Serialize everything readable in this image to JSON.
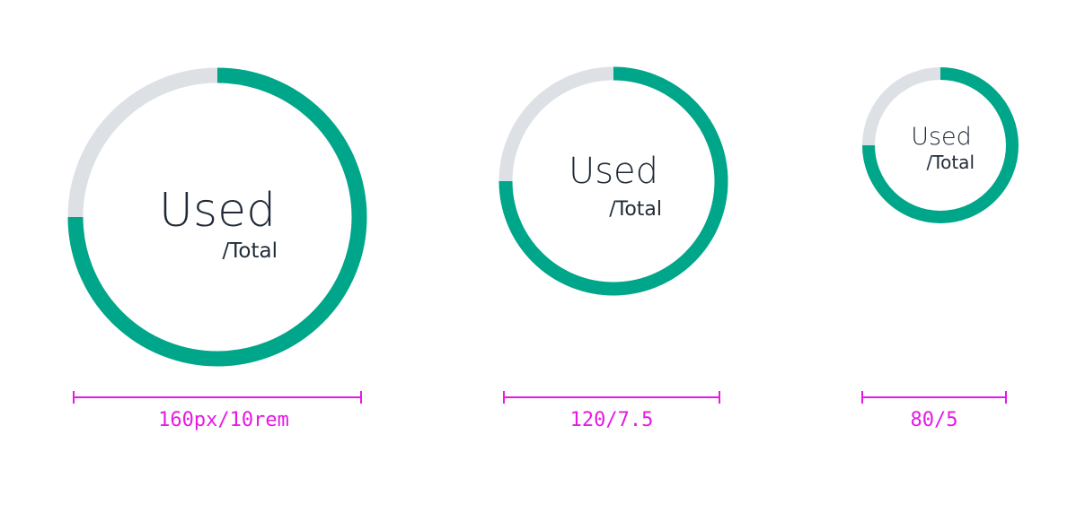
{
  "colors": {
    "track": "#dde1e6",
    "fill": "#00a68a",
    "text": "#1f2a37",
    "dimension": "#e619e6"
  },
  "gauges": [
    {
      "name": "large",
      "used_label": "Used",
      "total_label": "/Total",
      "fill_fraction": 0.75,
      "size_label": "160px/10rem"
    },
    {
      "name": "medium",
      "used_label": "Used",
      "total_label": "/Total",
      "fill_fraction": 0.75,
      "size_label": "120/7.5"
    },
    {
      "name": "small",
      "used_label": "Used",
      "total_label": "/Total",
      "fill_fraction": 0.75,
      "size_label": "80/5"
    }
  ]
}
